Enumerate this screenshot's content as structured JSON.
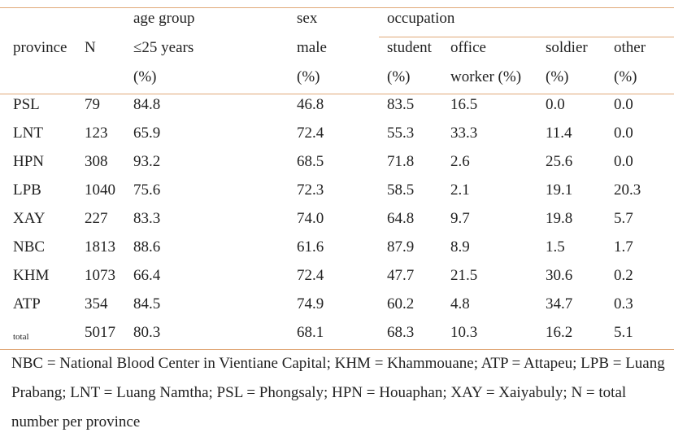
{
  "headers": {
    "age_group": "age group",
    "sex": "sex",
    "occupation": "occupation",
    "province": "province",
    "n": "N",
    "age_sub": "≤25 years",
    "sex_sub": "male",
    "student": "student",
    "office1": "office",
    "soldier": "soldier",
    "other": "other",
    "pct_age": "(%)",
    "pct_sex": "(%)",
    "pct_student": "(%)",
    "office2": "worker (%)",
    "pct_soldier": "(%)",
    "pct_other": "(%)"
  },
  "rows": [
    {
      "province": "PSL",
      "n": "79",
      "age": "84.8",
      "male": "46.8",
      "student": "83.5",
      "office": "16.5",
      "soldier": "0.0",
      "other": "0.0"
    },
    {
      "province": "LNT",
      "n": "123",
      "age": "65.9",
      "male": "72.4",
      "student": "55.3",
      "office": "33.3",
      "soldier": "11.4",
      "other": "0.0"
    },
    {
      "province": "HPN",
      "n": "308",
      "age": "93.2",
      "male": "68.5",
      "student": "71.8",
      "office": "2.6",
      "soldier": "25.6",
      "other": "0.0"
    },
    {
      "province": "LPB",
      "n": "1040",
      "age": "75.6",
      "male": "72.3",
      "student": "58.5",
      "office": "2.1",
      "soldier": "19.1",
      "other": "20.3"
    },
    {
      "province": "XAY",
      "n": "227",
      "age": "83.3",
      "male": "74.0",
      "student": "64.8",
      "office": "9.7",
      "soldier": "19.8",
      "other": "5.7"
    },
    {
      "province": "NBC",
      "n": "1813",
      "age": "88.6",
      "male": "61.6",
      "student": "87.9",
      "office": "8.9",
      "soldier": "1.5",
      "other": "1.7"
    },
    {
      "province": "KHM",
      "n": "1073",
      "age": "66.4",
      "male": "72.4",
      "student": "47.7",
      "office": "21.5",
      "soldier": "30.6",
      "other": "0.2"
    },
    {
      "province": "ATP",
      "n": "354",
      "age": "84.5",
      "male": "74.9",
      "student": "60.2",
      "office": "4.8",
      "soldier": "34.7",
      "other": "0.3"
    },
    {
      "province": "total",
      "n": "5017",
      "age": "80.3",
      "male": "68.1",
      "student": "68.3",
      "office": "10.3",
      "soldier": "16.2",
      "other": "5.1"
    }
  ],
  "footnote": "NBC = National Blood Center in Vientiane Capital; KHM = Khammouane; ATP = Attapeu; LPB = Luang Prabang; LNT = Luang Namtha; PSL = Phongsaly; HPN = Houaphan; XAY = Xaiyabuly; N = total number per province"
}
